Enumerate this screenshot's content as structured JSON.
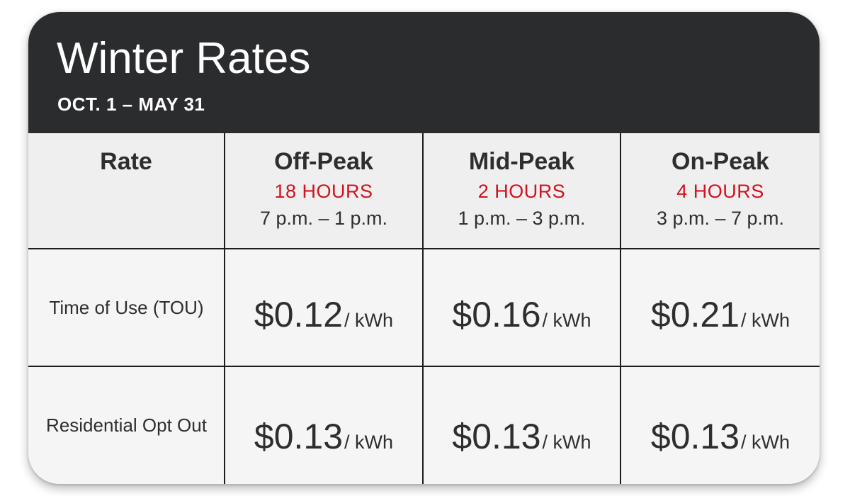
{
  "header": {
    "title": "Winter Rates",
    "subtitle": "OCT. 1 – MAY 31"
  },
  "table": {
    "rate_header": "Rate",
    "columns": [
      {
        "name": "Off-Peak",
        "hours": "18 HOURS",
        "time": "7 p.m. – 1 p.m."
      },
      {
        "name": "Mid-Peak",
        "hours": "2 HOURS",
        "time": "1 p.m. – 3 p.m."
      },
      {
        "name": "On-Peak",
        "hours": "4 HOURS",
        "time": "3 p.m. – 7 p.m."
      }
    ],
    "rows": [
      {
        "label": "Time of Use (TOU)",
        "prices": [
          {
            "value": "$0.12",
            "unit": "/ kWh"
          },
          {
            "value": "$0.16",
            "unit": "/ kWh"
          },
          {
            "value": "$0.21",
            "unit": "/ kWh"
          }
        ]
      },
      {
        "label": "Residential Opt Out",
        "prices": [
          {
            "value": "$0.13",
            "unit": "/ kWh"
          },
          {
            "value": "$0.13",
            "unit": "/ kWh"
          },
          {
            "value": "$0.13",
            "unit": "/ kWh"
          }
        ]
      }
    ]
  },
  "colors": {
    "header_bg": "#2b2c2e",
    "accent_red": "#d2121d",
    "text": "#2e2e2e",
    "cell_bg": "#f5f5f5",
    "head_bg": "#efefef"
  }
}
